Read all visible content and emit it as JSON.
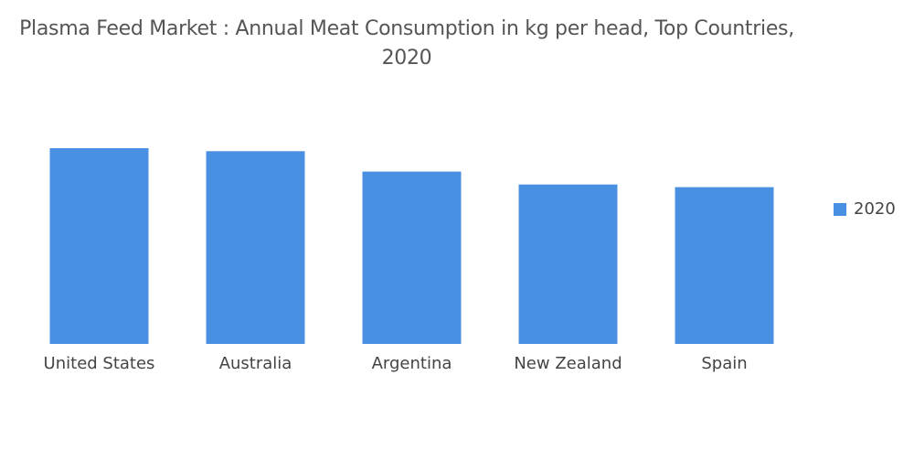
{
  "title_line1": "Plasma Feed Market : Annual Meat Consumption in kg per head, Top Countries,",
  "title_line2": "2020",
  "colors": {
    "bar": "#4a90e2",
    "text": "#444444"
  },
  "chart_data": {
    "type": "bar",
    "title": "Plasma Feed Market : Annual Meat Consumption in kg per head, Top Countries, 2020",
    "categories": [
      "United States",
      "Australia",
      "Argentina",
      "New Zealand",
      "Spain"
    ],
    "series": [
      {
        "name": "2020",
        "values": [
          98.6,
          97.1,
          86.8,
          80.3,
          79.0
        ]
      }
    ],
    "ylim": [
      0,
      100
    ],
    "grid": false,
    "legend": "right"
  }
}
